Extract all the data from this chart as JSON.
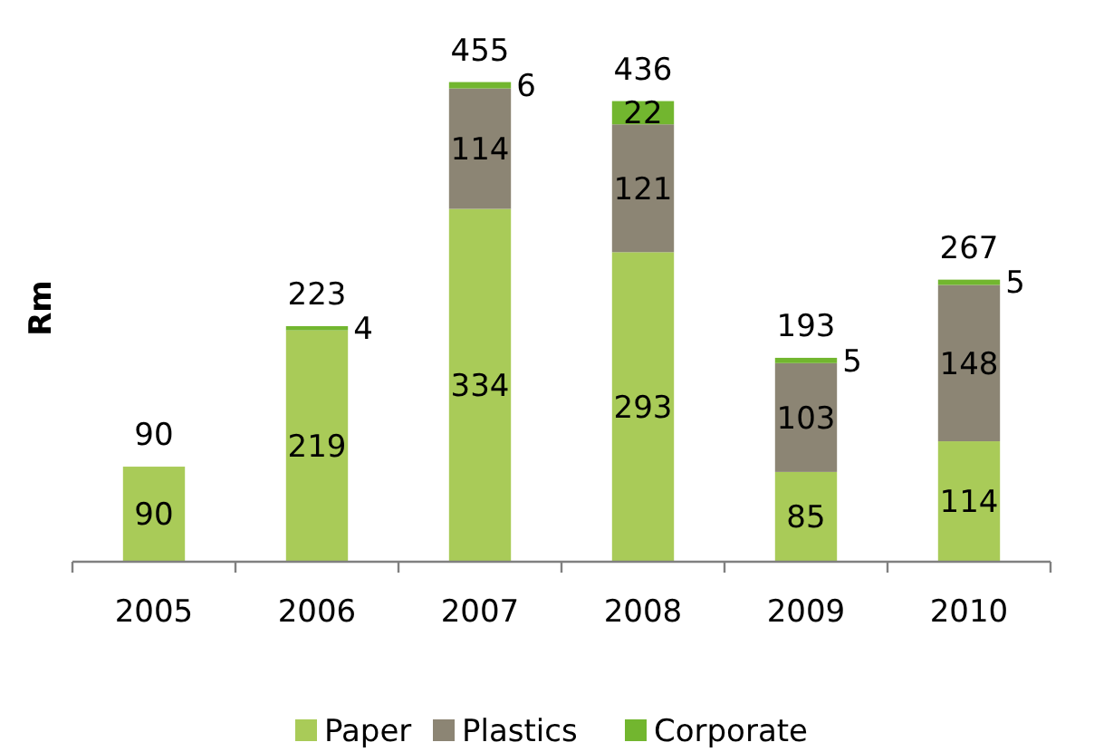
{
  "chart_data": {
    "type": "bar",
    "stacked": true,
    "ylabel": "Rm",
    "categories": [
      "2005",
      "2006",
      "2007",
      "2008",
      "2009",
      "2010"
    ],
    "series": [
      {
        "name": "Paper",
        "color": "#a9cb58",
        "values": [
          90,
          219,
          334,
          293,
          85,
          114
        ]
      },
      {
        "name": "Plastics",
        "color": "#8c8574",
        "values": [
          null,
          null,
          114,
          121,
          103,
          148
        ]
      },
      {
        "name": "Corporate",
        "color": "#72b62f",
        "values": [
          null,
          4,
          6,
          22,
          5,
          5
        ]
      }
    ],
    "data_labels": true,
    "totals": [
      "90",
      "223",
      "455",
      "436",
      "193",
      "267"
    ],
    "legend": "bottom"
  }
}
